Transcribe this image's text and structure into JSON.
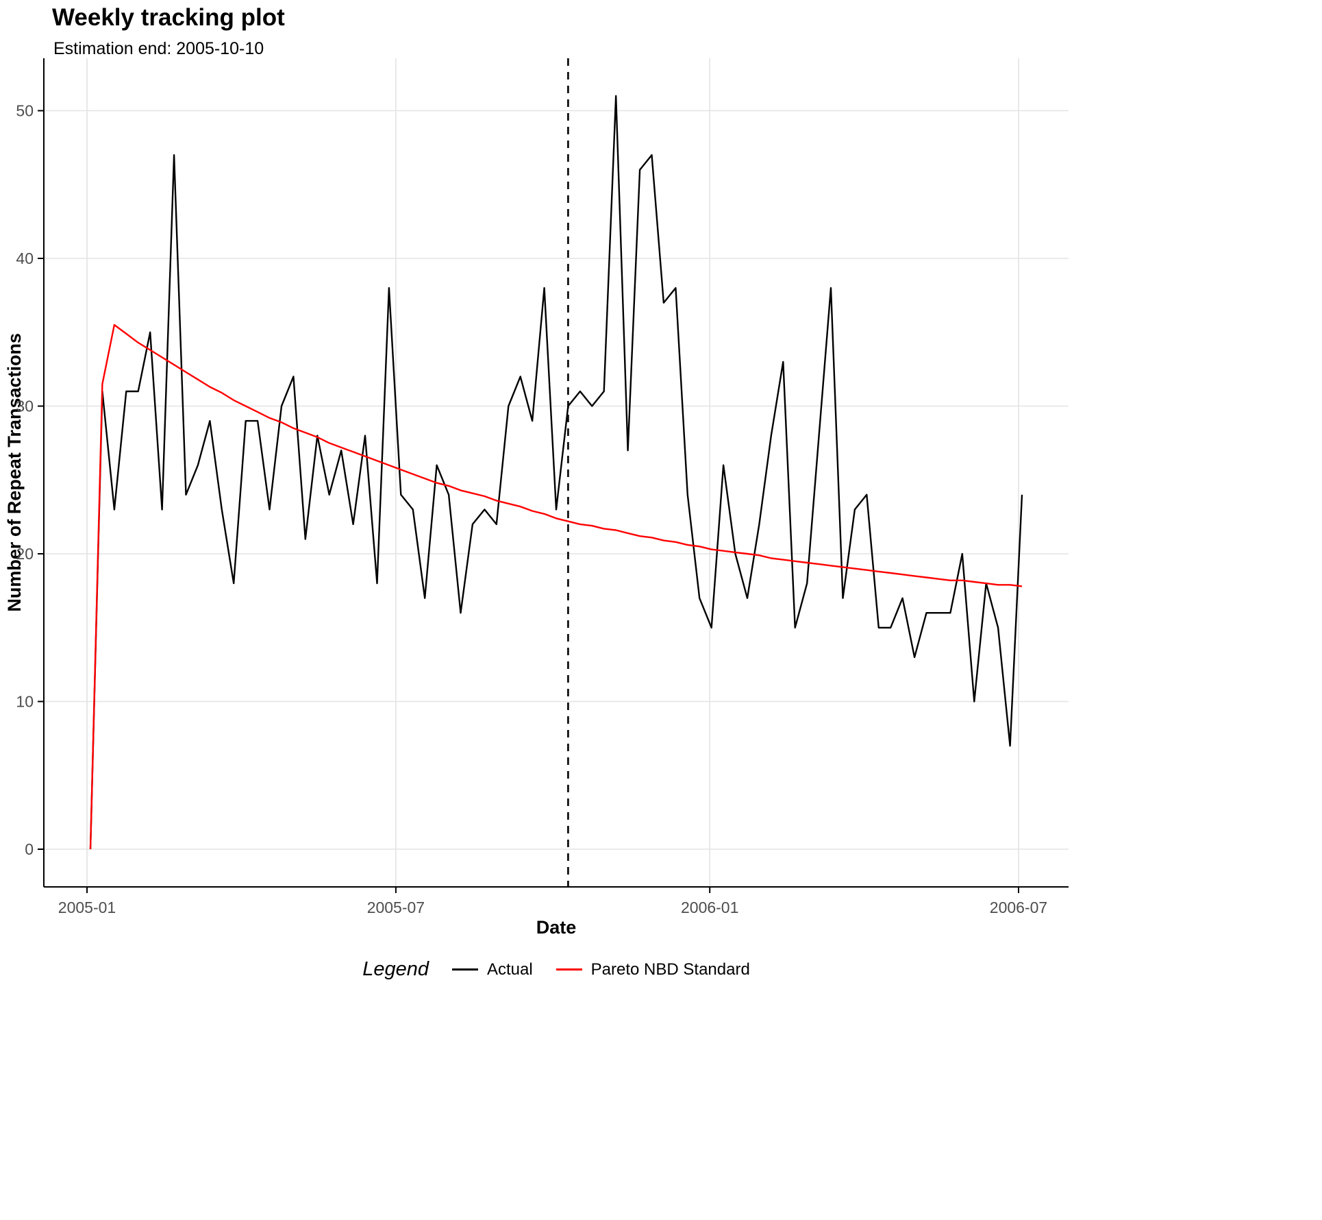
{
  "chart_data": {
    "type": "line",
    "title": "Weekly tracking plot",
    "subtitle": "Estimation end: 2005-10-10",
    "xlabel": "Date",
    "ylabel": "Number of Repeat Transactions",
    "legend_title": "Legend",
    "legend_position": "bottom",
    "grid": true,
    "x_tick_labels": [
      "2005-01",
      "2005-07",
      "2006-01",
      "2006-07"
    ],
    "x_tick_days": [
      0,
      181,
      365,
      546
    ],
    "y_ticks": [
      0,
      10,
      20,
      30,
      40,
      50
    ],
    "ylim": [
      -2.55,
      53.55
    ],
    "week_start_day": 2,
    "weeks": 79,
    "estimation_line": {
      "label": "2005-10-10",
      "week_index": 40,
      "style": "dashed",
      "color": "#000000"
    },
    "series": [
      {
        "name": "Actual",
        "color": "#000000",
        "dash": "solid",
        "values": [
          0,
          31,
          23,
          31,
          31,
          35,
          23,
          47,
          24,
          26,
          29,
          23,
          18,
          29,
          29,
          23,
          30,
          32,
          21,
          28,
          24,
          27,
          22,
          28,
          18,
          38,
          24,
          23,
          17,
          26,
          24,
          16,
          22,
          23,
          22,
          30,
          32,
          29,
          38,
          23,
          30,
          31,
          30,
          31,
          51,
          27,
          46,
          47,
          37,
          38,
          24,
          17,
          15,
          26,
          20,
          17,
          22,
          28,
          33,
          15,
          18,
          28,
          38,
          17,
          23,
          24,
          15,
          15,
          17,
          13,
          16,
          16,
          16,
          20,
          10,
          18,
          15,
          7,
          24
        ]
      },
      {
        "name": "Pareto NBD Standard",
        "color": "#FF0000",
        "dash": "solid",
        "values": [
          0,
          31.5,
          35.5,
          34.9,
          34.3,
          33.8,
          33.3,
          32.8,
          32.3,
          31.8,
          31.3,
          30.9,
          30.4,
          30.0,
          29.6,
          29.2,
          28.9,
          28.5,
          28.2,
          27.9,
          27.5,
          27.2,
          26.9,
          26.6,
          26.3,
          26.0,
          25.7,
          25.4,
          25.1,
          24.8,
          24.6,
          24.3,
          24.1,
          23.9,
          23.6,
          23.4,
          23.2,
          22.9,
          22.7,
          22.4,
          22.2,
          22.0,
          21.9,
          21.7,
          21.6,
          21.4,
          21.2,
          21.1,
          20.9,
          20.8,
          20.6,
          20.5,
          20.3,
          20.2,
          20.1,
          20.0,
          19.9,
          19.7,
          19.6,
          19.5,
          19.4,
          19.3,
          19.2,
          19.1,
          19.0,
          18.9,
          18.8,
          18.7,
          18.6,
          18.5,
          18.4,
          18.3,
          18.2,
          18.2,
          18.1,
          18.0,
          17.9,
          17.9,
          17.8
        ]
      }
    ],
    "style_hints": {
      "grid_color": "#E3E3E3",
      "axis_color": "#000000",
      "tick_label_color": "#4D4D4D"
    }
  }
}
